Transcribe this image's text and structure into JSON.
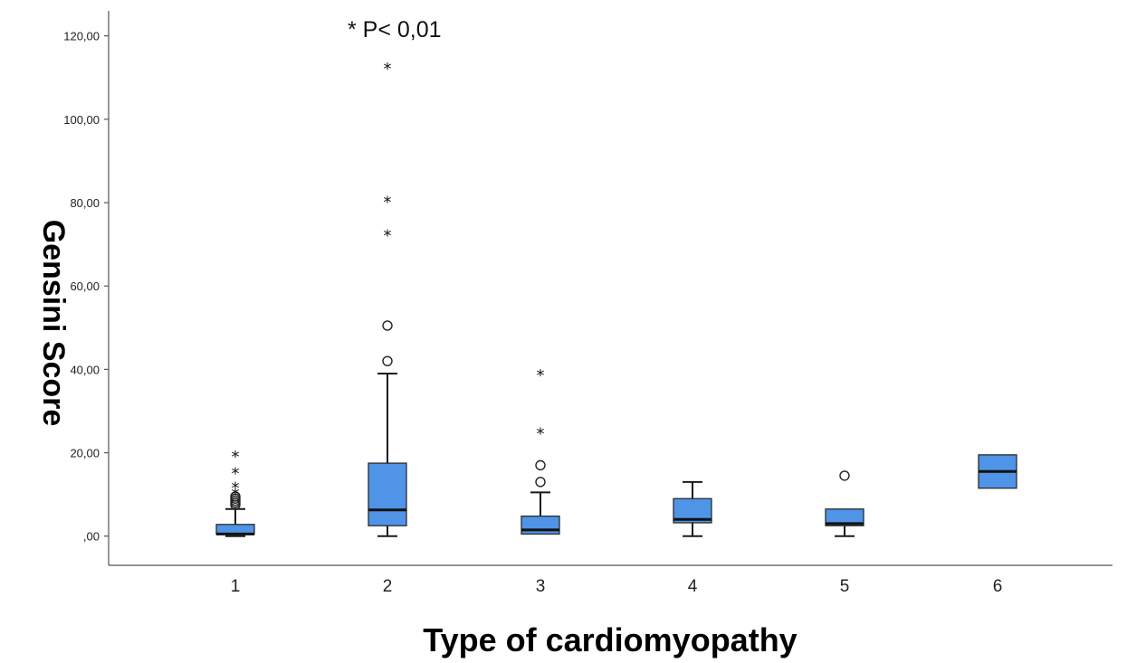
{
  "chart_data": {
    "type": "boxplot",
    "xlabel": "Type of cardiomyopathy",
    "ylabel": "Gensini Score",
    "annotation": "* P< 0,01",
    "ylim": [
      -7,
      126
    ],
    "yticks": [
      0,
      20,
      40,
      60,
      80,
      100,
      120
    ],
    "ytick_labels": [
      ",00",
      "20,00",
      "40,00",
      "60,00",
      "80,00",
      "100,00",
      "120,00"
    ],
    "categories": [
      "1",
      "2",
      "3",
      "4",
      "5",
      "6"
    ],
    "box_color": "#4f94e6",
    "grid": false,
    "boxes": [
      {
        "category": "1",
        "whisker_low": 0,
        "q1": 0.5,
        "median": 0.5,
        "q3": 2.8,
        "whisker_high": 6.5,
        "outliers_circle": [
          7.5,
          8,
          8.5,
          9,
          9.5
        ],
        "outliers_star": [
          10.5,
          12,
          15.5,
          19.5
        ]
      },
      {
        "category": "2",
        "whisker_low": 0,
        "q1": 2.5,
        "median": 6.3,
        "q3": 17.5,
        "whisker_high": 39,
        "outliers_circle": [
          42,
          50.5
        ],
        "outliers_star": [
          72.5,
          80.5,
          112.5
        ]
      },
      {
        "category": "3",
        "whisker_low": 0.5,
        "q1": 0.5,
        "median": 1.5,
        "q3": 4.8,
        "whisker_high": 10.5,
        "outliers_circle": [
          13,
          17
        ],
        "outliers_star": [
          25,
          39
        ]
      },
      {
        "category": "4",
        "whisker_low": 0,
        "q1": 3.2,
        "median": 4,
        "q3": 9,
        "whisker_high": 13,
        "outliers_circle": [],
        "outliers_star": []
      },
      {
        "category": "5",
        "whisker_low": 0,
        "q1": 2.5,
        "median": 3,
        "q3": 6.5,
        "whisker_high": 6.5,
        "outliers_circle": [
          14.5
        ],
        "outliers_star": []
      },
      {
        "category": "6",
        "whisker_low": 11.5,
        "q1": 11.5,
        "median": 15.5,
        "q3": 19.5,
        "whisker_high": 19.5,
        "outliers_circle": [],
        "outliers_star": []
      }
    ]
  }
}
